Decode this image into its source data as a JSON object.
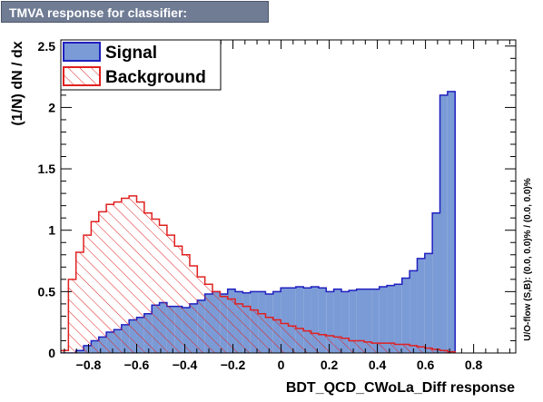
{
  "window": {
    "title": "TMVA response for classifier: BDT_QCD_CWoLa_Diff"
  },
  "chart_data": {
    "type": "histogram",
    "xlabel": "BDT_QCD_CWoLa_Diff response",
    "ylabel": "(1/N) dN / dx",
    "xlim": [
      -0.915,
      0.975
    ],
    "ylim": [
      0,
      2.55
    ],
    "x_ticks": [
      -0.8,
      -0.6,
      -0.4,
      -0.2,
      0,
      0.2,
      0.4,
      0.6,
      0.8
    ],
    "x_tick_labels": [
      "−0.8",
      "−0.6",
      "−0.4",
      "−0.2",
      "0",
      "0.2",
      "0.4",
      "0.6",
      "0.8"
    ],
    "y_ticks": [
      0,
      0.5,
      1,
      1.5,
      2,
      2.5
    ],
    "y_tick_labels": [
      "0",
      "0.5",
      "1",
      "1.5",
      "2",
      "2.5"
    ],
    "overflow_note": "U/O-flow (S,B): (0.0, 0.0)% / (0.0, 0.0)%",
    "bin_edges_start": -0.915,
    "bin_width": 0.0315,
    "series": [
      {
        "name": "Signal",
        "color": "#2020c0",
        "fill": "#7b9bd6",
        "style": "solid",
        "values": [
          0,
          0,
          0.02,
          0.06,
          0.1,
          0.13,
          0.17,
          0.19,
          0.23,
          0.27,
          0.29,
          0.32,
          0.39,
          0.41,
          0.38,
          0.38,
          0.37,
          0.4,
          0.43,
          0.48,
          0.5,
          0.48,
          0.52,
          0.5,
          0.49,
          0.5,
          0.5,
          0.48,
          0.5,
          0.53,
          0.53,
          0.54,
          0.53,
          0.54,
          0.53,
          0.5,
          0.52,
          0.5,
          0.51,
          0.52,
          0.52,
          0.52,
          0.54,
          0.55,
          0.56,
          0.61,
          0.67,
          0.77,
          0.81,
          1.14,
          2.1,
          2.13
        ]
      },
      {
        "name": "Background",
        "color": "#e02020",
        "fill": "none",
        "style": "hatched",
        "values": [
          0.02,
          0.6,
          0.82,
          0.96,
          1.07,
          1.15,
          1.21,
          1.23,
          1.26,
          1.28,
          1.23,
          1.14,
          1.09,
          1.04,
          0.96,
          0.87,
          0.8,
          0.71,
          0.62,
          0.56,
          0.5,
          0.46,
          0.44,
          0.4,
          0.38,
          0.35,
          0.32,
          0.29,
          0.27,
          0.24,
          0.22,
          0.2,
          0.18,
          0.16,
          0.15,
          0.14,
          0.13,
          0.12,
          0.1,
          0.1,
          0.09,
          0.08,
          0.08,
          0.08,
          0.07,
          0.07,
          0.06,
          0.05,
          0.04,
          0.03,
          0.02,
          0.01
        ]
      }
    ],
    "legend": {
      "position": "top-left",
      "entries": [
        "Signal",
        "Background"
      ]
    }
  }
}
